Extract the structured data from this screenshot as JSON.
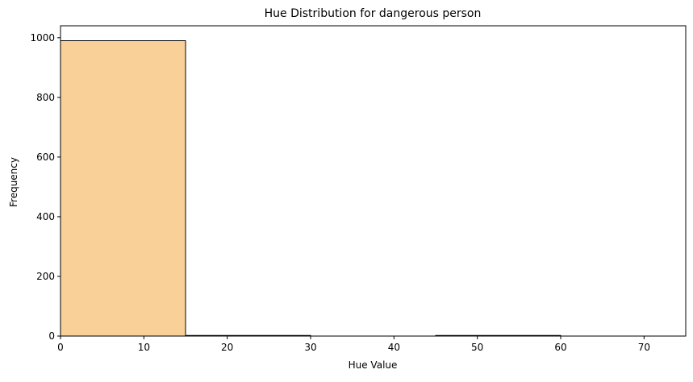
{
  "chart_data": {
    "type": "bar",
    "title": "Hue Distribution for dangerous person",
    "xlabel": "Hue Value",
    "ylabel": "Frequency",
    "bins": [
      {
        "start": 0,
        "end": 15,
        "value": 990
      },
      {
        "start": 15,
        "end": 30,
        "value": 2
      },
      {
        "start": 30,
        "end": 45,
        "value": 0
      },
      {
        "start": 45,
        "end": 60,
        "value": 2
      },
      {
        "start": 60,
        "end": 75,
        "value": 0
      }
    ],
    "xlim": [
      0,
      75
    ],
    "ylim": [
      0,
      1040
    ],
    "x_ticks": [
      0,
      10,
      20,
      30,
      40,
      50,
      60,
      70
    ],
    "y_ticks": [
      0,
      200,
      400,
      600,
      800,
      1000
    ],
    "grid": false,
    "legend": "none",
    "colors": {
      "bar_fill": "#f9d198",
      "bar_edge": "#000000",
      "axes": "#000000",
      "background": "#ffffff"
    }
  }
}
